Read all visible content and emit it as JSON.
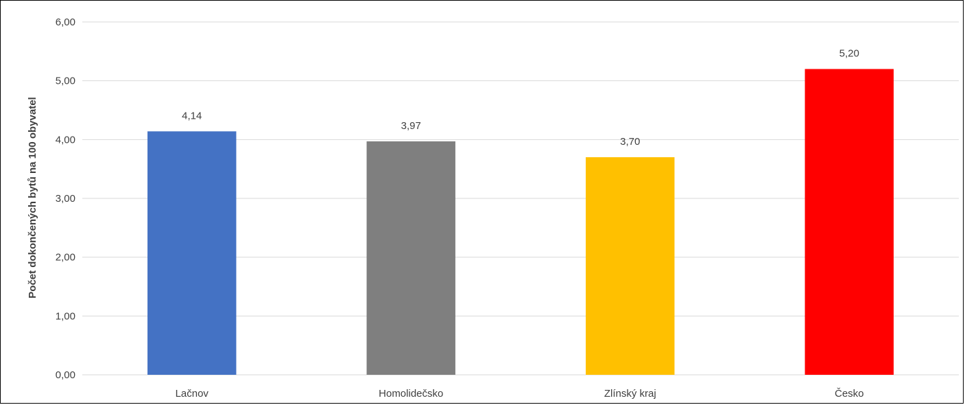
{
  "chart_data": {
    "type": "bar",
    "title": "",
    "xlabel": "",
    "ylabel": "Počet dokončených bytů na 100 obyvatel",
    "ylim": [
      0,
      6
    ],
    "yticks": [
      "0,00",
      "1,00",
      "2,00",
      "3,00",
      "4,00",
      "5,00",
      "6,00"
    ],
    "grid": true,
    "legend": "none",
    "categories": [
      "Lačnov",
      "Homolidečsko",
      "Zlínský kraj",
      "Česko"
    ],
    "values": [
      4.14,
      3.97,
      3.7,
      5.2
    ],
    "value_labels": [
      "4,14",
      "3,97",
      "3,70",
      "5,20"
    ],
    "colors": [
      "#4472c4",
      "#7f7f7f",
      "#ffc000",
      "#ff0000"
    ]
  }
}
